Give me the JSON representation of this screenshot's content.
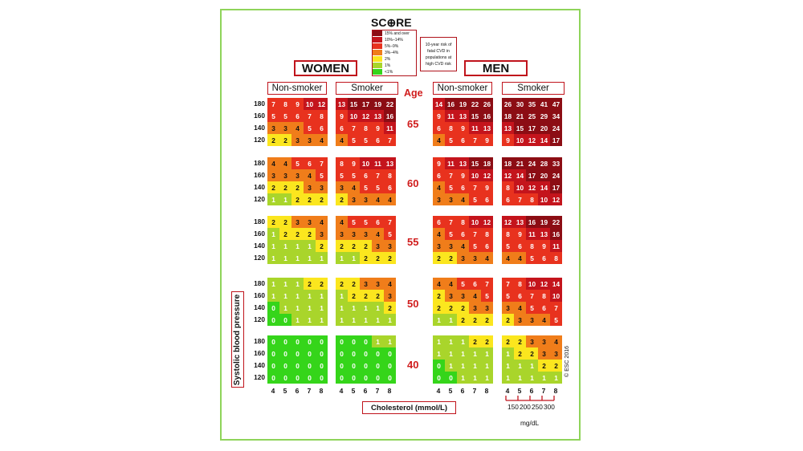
{
  "title": "SC⊕RE",
  "legend": [
    {
      "label": "15% and over",
      "color": "#8c0d14"
    },
    {
      "label": "10%–14%",
      "color": "#c4141c"
    },
    {
      "label": "5%–9%",
      "color": "#e8321e"
    },
    {
      "label": "3%–4%",
      "color": "#f07d1a"
    },
    {
      "label": "2%",
      "color": "#fbe61e"
    },
    {
      "label": "1%",
      "color": "#a9d52b"
    },
    {
      "label": "<1%",
      "color": "#35d51a"
    }
  ],
  "risk_note": "10-year risk of fatal CVD in populations at high CVD risk",
  "women_label": "WOMEN",
  "men_label": "MEN",
  "non_smoker_label": "Non-smoker",
  "smoker_label": "Smoker",
  "age_header": "Age",
  "ages": [
    "65",
    "60",
    "55",
    "50",
    "40"
  ],
  "sbp_values": [
    "180",
    "160",
    "140",
    "120"
  ],
  "cholesterol_ticks": [
    "4",
    "5",
    "6",
    "7",
    "8"
  ],
  "ylabel": "Systolic blood pressure",
  "xlabel": "Cholesterol (mmol/L)",
  "mgdl_ticks": [
    "150",
    "200",
    "250",
    "300"
  ],
  "mgdl_unit": "mg/dL",
  "copyright": "© ESC 2016",
  "chart_data": {
    "type": "heatmap",
    "rows": [
      "180",
      "160",
      "140",
      "120"
    ],
    "columns": [
      "4",
      "5",
      "6",
      "7",
      "8"
    ],
    "grids": {
      "women_nonsmoker": [
        [
          [
            7,
            8,
            9,
            10,
            12
          ],
          [
            5,
            5,
            6,
            7,
            8
          ],
          [
            3,
            3,
            4,
            5,
            6
          ],
          [
            2,
            2,
            3,
            3,
            4
          ]
        ],
        [
          [
            4,
            4,
            5,
            6,
            7
          ],
          [
            3,
            3,
            3,
            4,
            5
          ],
          [
            2,
            2,
            2,
            3,
            3
          ],
          [
            1,
            1,
            2,
            2,
            2
          ]
        ],
        [
          [
            2,
            2,
            3,
            3,
            4
          ],
          [
            1,
            2,
            2,
            2,
            3
          ],
          [
            1,
            1,
            1,
            1,
            2
          ],
          [
            1,
            1,
            1,
            1,
            1
          ]
        ],
        [
          [
            1,
            1,
            1,
            2,
            2
          ],
          [
            1,
            1,
            1,
            1,
            1
          ],
          [
            0,
            1,
            1,
            1,
            1
          ],
          [
            0,
            0,
            1,
            1,
            1
          ]
        ],
        [
          [
            0,
            0,
            0,
            0,
            0
          ],
          [
            0,
            0,
            0,
            0,
            0
          ],
          [
            0,
            0,
            0,
            0,
            0
          ],
          [
            0,
            0,
            0,
            0,
            0
          ]
        ]
      ],
      "women_smoker": [
        [
          [
            13,
            15,
            17,
            19,
            22
          ],
          [
            9,
            10,
            12,
            13,
            16
          ],
          [
            6,
            7,
            8,
            9,
            11
          ],
          [
            4,
            5,
            5,
            6,
            7
          ]
        ],
        [
          [
            8,
            9,
            10,
            11,
            13
          ],
          [
            5,
            5,
            6,
            7,
            8
          ],
          [
            3,
            4,
            5,
            5,
            6
          ],
          [
            2,
            3,
            3,
            4,
            4
          ]
        ],
        [
          [
            4,
            5,
            5,
            6,
            7
          ],
          [
            3,
            3,
            3,
            4,
            5
          ],
          [
            2,
            2,
            2,
            3,
            3
          ],
          [
            1,
            1,
            2,
            2,
            2
          ]
        ],
        [
          [
            2,
            2,
            3,
            3,
            4
          ],
          [
            1,
            2,
            2,
            2,
            3
          ],
          [
            1,
            1,
            1,
            1,
            2
          ],
          [
            1,
            1,
            1,
            1,
            1
          ]
        ],
        [
          [
            0,
            0,
            0,
            1,
            1
          ],
          [
            0,
            0,
            0,
            0,
            0
          ],
          [
            0,
            0,
            0,
            0,
            0
          ],
          [
            0,
            0,
            0,
            0,
            0
          ]
        ]
      ],
      "men_nonsmoker": [
        [
          [
            14,
            16,
            19,
            22,
            26
          ],
          [
            9,
            11,
            13,
            15,
            16
          ],
          [
            6,
            8,
            9,
            11,
            13
          ],
          [
            4,
            5,
            6,
            7,
            9
          ]
        ],
        [
          [
            9,
            11,
            13,
            15,
            18
          ],
          [
            6,
            7,
            9,
            10,
            12
          ],
          [
            4,
            5,
            6,
            7,
            9
          ],
          [
            3,
            3,
            4,
            5,
            6
          ]
        ],
        [
          [
            6,
            7,
            8,
            10,
            12
          ],
          [
            4,
            5,
            6,
            7,
            8
          ],
          [
            3,
            3,
            4,
            5,
            6
          ],
          [
            2,
            2,
            3,
            3,
            4
          ]
        ],
        [
          [
            4,
            4,
            5,
            6,
            7
          ],
          [
            2,
            3,
            3,
            4,
            5
          ],
          [
            2,
            2,
            2,
            3,
            3
          ],
          [
            1,
            1,
            2,
            2,
            2
          ]
        ],
        [
          [
            1,
            1,
            1,
            2,
            2
          ],
          [
            1,
            1,
            1,
            1,
            1
          ],
          [
            0,
            1,
            1,
            1,
            1
          ],
          [
            0,
            0,
            1,
            1,
            1
          ]
        ]
      ],
      "men_smoker": [
        [
          [
            26,
            30,
            35,
            41,
            47
          ],
          [
            18,
            21,
            25,
            29,
            34
          ],
          [
            13,
            15,
            17,
            20,
            24
          ],
          [
            9,
            10,
            12,
            14,
            17
          ]
        ],
        [
          [
            18,
            21,
            24,
            28,
            33
          ],
          [
            12,
            14,
            17,
            20,
            24
          ],
          [
            8,
            10,
            12,
            14,
            17
          ],
          [
            6,
            7,
            8,
            10,
            12
          ]
        ],
        [
          [
            12,
            13,
            16,
            19,
            22
          ],
          [
            8,
            9,
            11,
            13,
            16
          ],
          [
            5,
            6,
            8,
            9,
            11
          ],
          [
            4,
            4,
            5,
            6,
            8
          ]
        ],
        [
          [
            7,
            8,
            10,
            12,
            14
          ],
          [
            5,
            6,
            7,
            8,
            10
          ],
          [
            3,
            4,
            5,
            6,
            7
          ],
          [
            2,
            3,
            3,
            4,
            5
          ]
        ],
        [
          [
            2,
            2,
            3,
            3,
            4
          ],
          [
            1,
            2,
            2,
            3,
            3
          ],
          [
            1,
            1,
            1,
            2,
            2
          ],
          [
            1,
            1,
            1,
            1,
            1
          ]
        ]
      ]
    }
  }
}
